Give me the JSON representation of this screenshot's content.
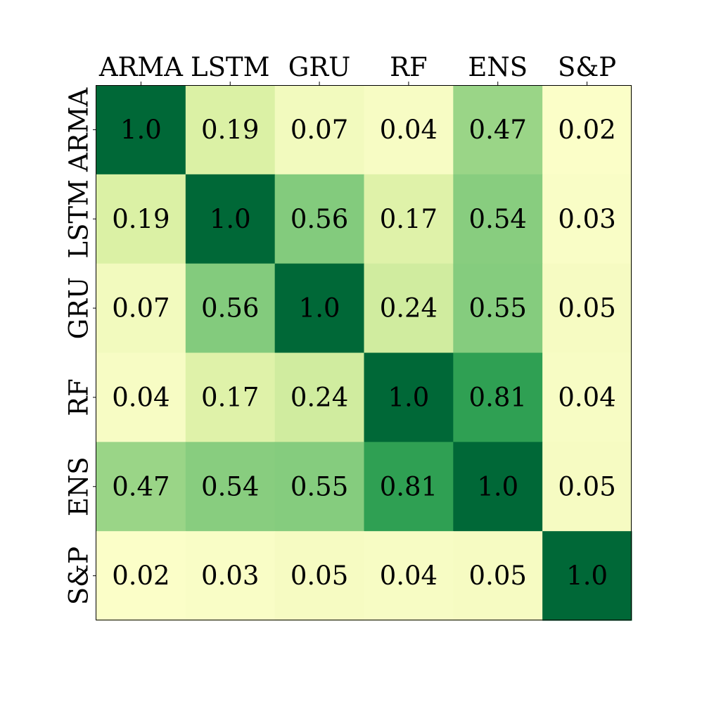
{
  "chart_data": {
    "type": "heatmap",
    "title": "",
    "xlabel": "",
    "ylabel": "",
    "x_categories": [
      "ARMA",
      "LSTM",
      "GRU",
      "RF",
      "ENS",
      "S&P"
    ],
    "y_categories": [
      "ARMA",
      "LSTM",
      "GRU",
      "RF",
      "ENS",
      "S&P"
    ],
    "x_tick_position": "top",
    "y_tick_rotation": "vertical",
    "colormap": [
      "#ffffcc",
      "#d9f0a3",
      "#addd8e",
      "#78c679",
      "#31a354",
      "#006837"
    ],
    "value_range": [
      0,
      1
    ],
    "values": [
      [
        1.0,
        0.19,
        0.07,
        0.04,
        0.47,
        0.02
      ],
      [
        0.19,
        1.0,
        0.56,
        0.17,
        0.54,
        0.03
      ],
      [
        0.07,
        0.56,
        1.0,
        0.24,
        0.55,
        0.05
      ],
      [
        0.04,
        0.17,
        0.24,
        1.0,
        0.81,
        0.04
      ],
      [
        0.47,
        0.54,
        0.55,
        0.81,
        1.0,
        0.05
      ],
      [
        0.02,
        0.03,
        0.05,
        0.04,
        0.05,
        1.0
      ]
    ],
    "value_labels": [
      [
        "1.0",
        "0.19",
        "0.07",
        "0.04",
        "0.47",
        "0.02"
      ],
      [
        "0.19",
        "1.0",
        "0.56",
        "0.17",
        "0.54",
        "0.03"
      ],
      [
        "0.07",
        "0.56",
        "1.0",
        "0.24",
        "0.55",
        "0.05"
      ],
      [
        "0.04",
        "0.17",
        "0.24",
        "1.0",
        "0.81",
        "0.04"
      ],
      [
        "0.47",
        "0.54",
        "0.55",
        "0.81",
        "1.0",
        "0.05"
      ],
      [
        "0.02",
        "0.03",
        "0.05",
        "0.04",
        "0.05",
        "1.0"
      ]
    ],
    "grid": false,
    "legend": "none"
  }
}
